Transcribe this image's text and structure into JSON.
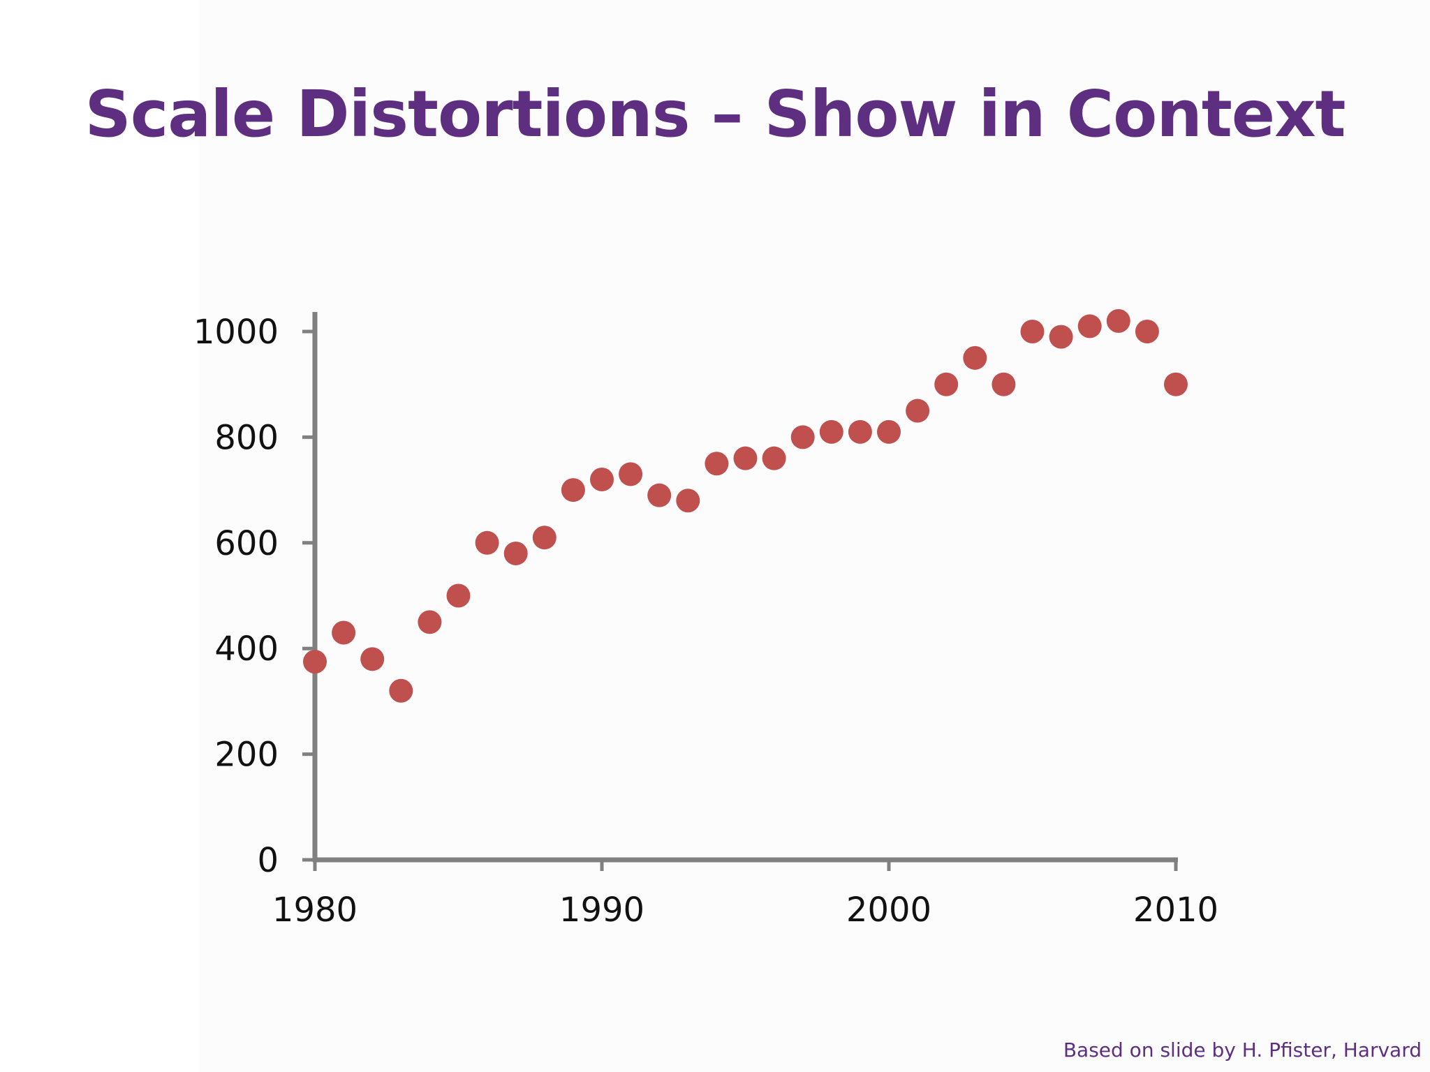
{
  "slide": {
    "title": "Scale Distortions – Show in Context",
    "credit": "Based on slide by H. Pfister, Harvard"
  },
  "colors": {
    "title": "#5e2f80",
    "marker": "#c0504d",
    "axis": "#808080",
    "text": "#111111"
  },
  "chart_data": {
    "type": "scatter",
    "title": "",
    "xlabel": "",
    "ylabel": "",
    "xlim": [
      1980,
      2010
    ],
    "ylim": [
      0,
      1000
    ],
    "x_ticks": [
      1980,
      1990,
      2000,
      2010
    ],
    "y_ticks": [
      0,
      200,
      400,
      600,
      800,
      1000
    ],
    "grid": false,
    "legend": "none",
    "series": [
      {
        "x": [
          1980,
          1981,
          1982,
          1983,
          1984,
          1985,
          1986,
          1987,
          1988,
          1989,
          1990,
          1991,
          1992,
          1993,
          1994,
          1995,
          1996,
          1997,
          1998,
          1999,
          2000,
          2001,
          2002,
          2003,
          2004,
          2005,
          2006,
          2007,
          2008,
          2009,
          2010
        ],
        "y": [
          375,
          430,
          380,
          320,
          450,
          500,
          600,
          580,
          610,
          700,
          720,
          730,
          690,
          680,
          750,
          760,
          760,
          800,
          810,
          810,
          810,
          850,
          900,
          950,
          900,
          1000,
          990,
          1010,
          1020,
          1000,
          900
        ]
      }
    ]
  }
}
